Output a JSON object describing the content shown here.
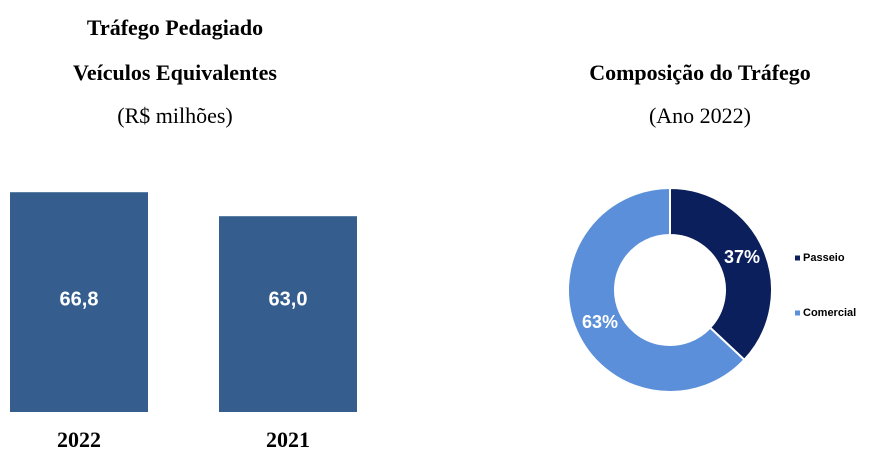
{
  "chart_data": [
    {
      "type": "bar",
      "title": "Tráfego Pedagiado",
      "subtitle": "Veículos Equivalentes",
      "unit_label": "(R$ milhões)",
      "categories": [
        "2022",
        "2021"
      ],
      "values": [
        66.8,
        63.0
      ],
      "value_labels": [
        "66,8",
        "63,0"
      ],
      "color": "#355e8f",
      "ylim": [
        32,
        70
      ]
    },
    {
      "type": "donut",
      "title": "Composição do Tráfego",
      "subtitle": "(Ano 2022)",
      "categories": [
        "Passeio",
        "Comercial"
      ],
      "values": [
        37,
        63
      ],
      "value_labels": [
        "37%",
        "63%"
      ],
      "colors": [
        "#0b1f5c",
        "#5b8fd9"
      ],
      "legend": "right"
    }
  ]
}
